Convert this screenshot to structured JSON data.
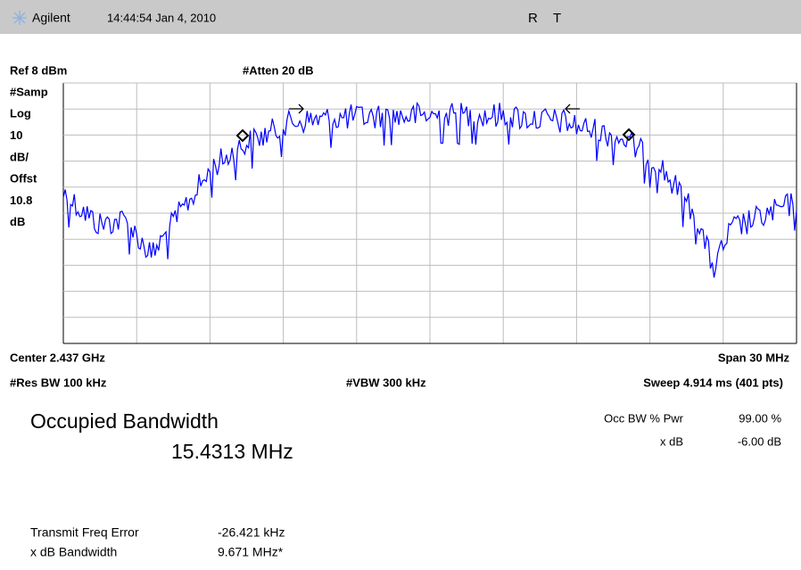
{
  "header": {
    "brand": "Agilent",
    "time": "14:44:54  Jan 4, 2010",
    "status": [
      "R",
      "T"
    ]
  },
  "screen": {
    "ref": "Ref 8 dBm",
    "atten": "#Atten 20 dB",
    "side_labels": [
      "#Samp",
      "Log",
      "10",
      "dB/",
      "Offst",
      "10.8",
      "dB"
    ],
    "center": "Center 2.437 GHz",
    "span": "Span 30 MHz",
    "res_bw": "#Res BW 100 kHz",
    "vbw": "#VBW 300 kHz",
    "sweep": "Sweep 4.914 ms (401 pts)"
  },
  "measurement": {
    "title": "Occupied Bandwidth",
    "value": "15.4313 MHz",
    "params": [
      {
        "label": "Occ BW % Pwr",
        "value": "99.00 %"
      },
      {
        "label": "x dB",
        "value": "-6.00 dB"
      }
    ]
  },
  "results": [
    {
      "label": "Transmit Freq Error",
      "value": "-26.421 kHz"
    },
    {
      "label": "x dB Bandwidth",
      "value": "9.671 MHz*"
    }
  ]
}
